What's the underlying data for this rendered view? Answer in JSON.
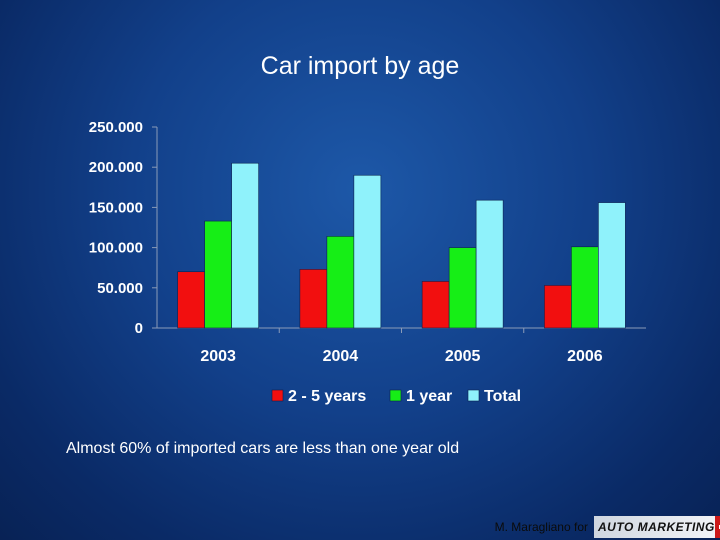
{
  "title": "Car import by age",
  "subtitle": "Almost 60% of imported cars are less than one year old",
  "footer": {
    "author": "M. Maragliano for",
    "logo_text": "AUTO MARKETING"
  },
  "colors": {
    "series_2_5_years": "#f20f0f",
    "series_1_year": "#16ee16",
    "series_total": "#8ff2fb",
    "text": "#ffffff"
  },
  "chart_data": {
    "type": "bar",
    "title": "Car import by age",
    "categories": [
      "2003",
      "2004",
      "2005",
      "2006"
    ],
    "series": [
      {
        "name": "2 - 5 years",
        "values": [
          70000,
          73000,
          58000,
          53000
        ]
      },
      {
        "name": "1 year",
        "values": [
          133000,
          114000,
          100000,
          101000
        ]
      },
      {
        "name": "Total",
        "values": [
          205000,
          190000,
          159000,
          156000
        ]
      }
    ],
    "ylim": [
      0,
      250000
    ],
    "yticks": [
      0,
      50000,
      100000,
      150000,
      200000,
      250000
    ],
    "ytick_labels": [
      "0",
      "50.000",
      "100.000",
      "150.000",
      "200.000",
      "250.000"
    ],
    "legend": "bottom",
    "grid": false
  }
}
